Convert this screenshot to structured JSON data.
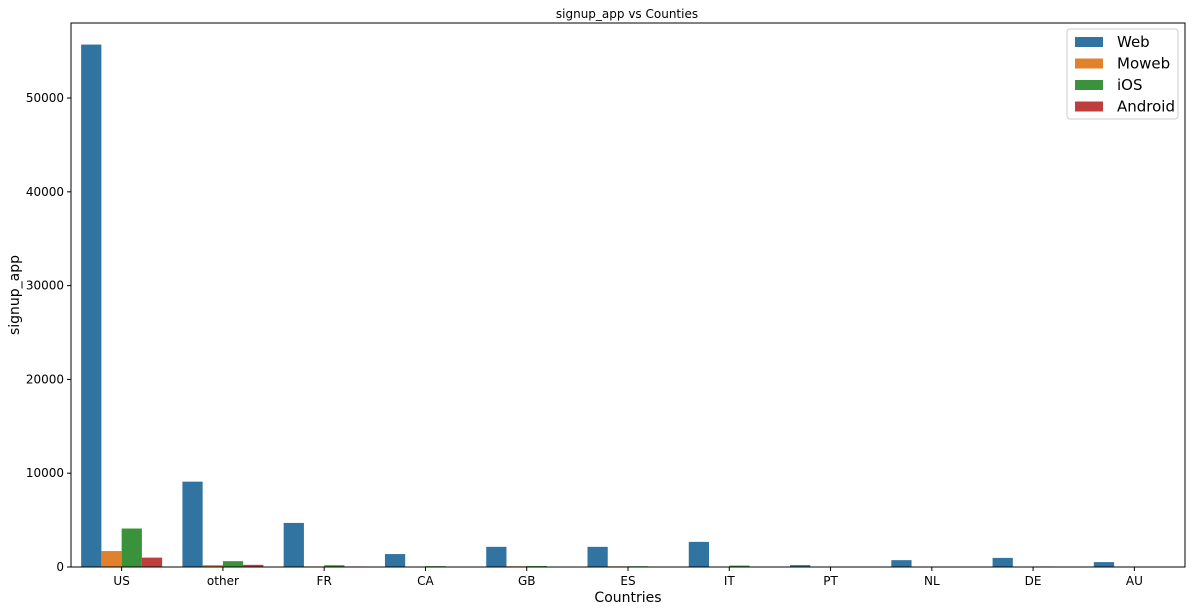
{
  "chart_data": {
    "type": "bar",
    "title": "signup_app vs Counties",
    "xlabel": "Countries",
    "ylabel": "signup_app",
    "categories": [
      "US",
      "other",
      "FR",
      "CA",
      "GB",
      "ES",
      "IT",
      "PT",
      "NL",
      "DE",
      "AU"
    ],
    "series": [
      {
        "name": "Web",
        "color": "#3274a1",
        "values": [
          55700,
          9100,
          4700,
          1380,
          2150,
          2150,
          2680,
          200,
          730,
          970,
          520
        ]
      },
      {
        "name": "Moweb",
        "color": "#e1812c",
        "values": [
          1700,
          200,
          60,
          40,
          80,
          70,
          40,
          10,
          20,
          20,
          10
        ]
      },
      {
        "name": "iOS",
        "color": "#3a923a",
        "values": [
          4100,
          620,
          190,
          90,
          100,
          80,
          150,
          15,
          50,
          60,
          25
        ]
      },
      {
        "name": "Android",
        "color": "#c03d3e",
        "values": [
          1000,
          230,
          60,
          30,
          30,
          25,
          30,
          5,
          10,
          15,
          10
        ]
      }
    ],
    "ylim": [
      0,
      58000
    ],
    "yticks": [
      "0",
      "10000",
      "20000",
      "30000",
      "40000",
      "50000"
    ],
    "legend_position": "top-right",
    "grid": false
  }
}
